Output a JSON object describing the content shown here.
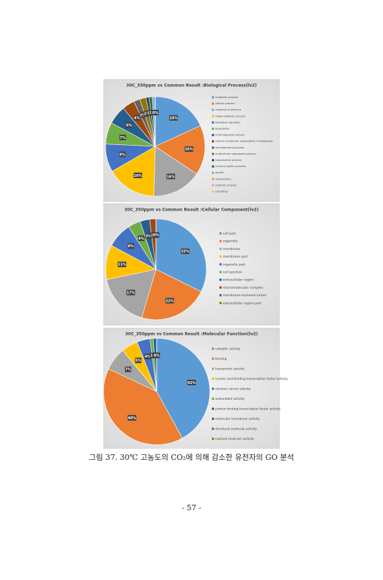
{
  "chart_data": [
    {
      "type": "pie",
      "title": "30C_350ppm vs Common Result :Biological Process(lv2)",
      "categories": [
        "metabolic process",
        "cellular process",
        "response to stimulus",
        "single-organism process",
        "biological regulation",
        "localization",
        "multi-organism process",
        "cellular component organization or biogenesis",
        "developmental process",
        "multicellular organismal process",
        "reproductive process",
        "immune system process",
        "growth",
        "reproduction",
        "rhythmic process",
        "cell killing"
      ],
      "values": [
        18,
        16,
        16,
        16,
        9,
        7,
        6,
        4,
        2,
        2,
        1,
        1,
        1,
        0,
        0,
        0
      ],
      "value_labels": [
        "18%",
        "16%",
        "16%",
        "16%",
        "9%",
        "7%",
        "6%",
        "4%",
        "2%",
        "2%",
        "1%",
        "1%",
        "1%",
        "0%",
        "0%",
        "0%"
      ],
      "colors": [
        "#5b9bd5",
        "#ed7d31",
        "#a5a5a5",
        "#ffc000",
        "#4472c4",
        "#70ad47",
        "#255e91",
        "#9e480e",
        "#636363",
        "#997300",
        "#264478",
        "#43682b",
        "#7cafdd",
        "#f1975a",
        "#b7b7b7",
        "#ffcd33"
      ],
      "legend": "right"
    },
    {
      "type": "pie",
      "title": "30C_350ppm vs Common Result :Cellular Component(lv2)",
      "categories": [
        "cell part",
        "organelle",
        "membrane",
        "membrane part",
        "organelle part",
        "cell junction",
        "extracellular region",
        "macromolecular complex",
        "membrane-enclosed lumen",
        "extracellular region part"
      ],
      "values": [
        32,
        22,
        17,
        11,
        8,
        4,
        3,
        2,
        0,
        0
      ],
      "value_labels": [
        "32%",
        "22%",
        "17%",
        "11%",
        "8%",
        "4%",
        "3%",
        "2%",
        "0%",
        "0%"
      ],
      "colors": [
        "#5b9bd5",
        "#ed7d31",
        "#a5a5a5",
        "#ffc000",
        "#4472c4",
        "#70ad47",
        "#255e91",
        "#9e480e",
        "#636363",
        "#997300"
      ],
      "legend": "right"
    },
    {
      "type": "pie",
      "title": "30C_350ppm vs Common Result :Molecular Function(lv2)",
      "categories": [
        "catalytic activity",
        "binding",
        "transporter activity",
        "nucleic acid binding transcription factor activity",
        "electron carrier activity",
        "antioxidant activity",
        "protein binding transcription factor activity",
        "molecular transducer activity",
        "structural molecule activity",
        "nutrient reservoir activity"
      ],
      "values": [
        42,
        40,
        7,
        5,
        4,
        1,
        1,
        0,
        0,
        0
      ],
      "value_labels": [
        "42%",
        "40%",
        "7%",
        "5%",
        "4%",
        "1%",
        "1%",
        "0%",
        "0%",
        "0%"
      ],
      "colors": [
        "#5b9bd5",
        "#ed7d31",
        "#a5a5a5",
        "#ffc000",
        "#4472c4",
        "#70ad47",
        "#255e91",
        "#9e480e",
        "#636363",
        "#997300"
      ],
      "legend": "right"
    }
  ],
  "caption": "그림 37. 30℃ 고농도의 CO₂에 의해 감소한 유전자의 GO 분석",
  "page_number": "- 57 -"
}
